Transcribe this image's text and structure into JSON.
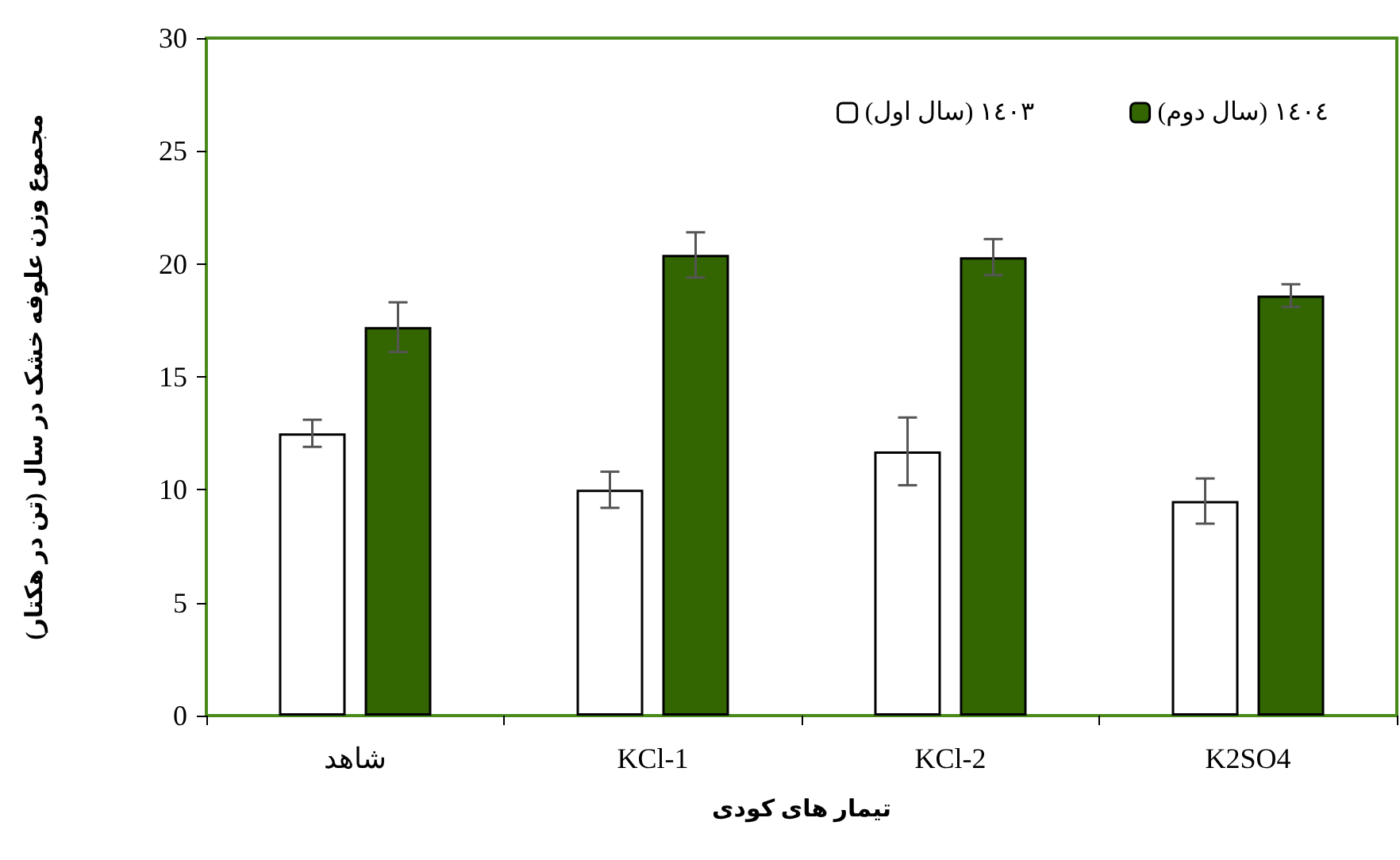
{
  "chart_data": {
    "type": "bar",
    "xlabel": "تیمار های کودی",
    "ylabel": "مجموع وزن علوفه خشک در سال (تن در هکتار)",
    "categories": [
      "شاهد",
      "KCl-1",
      "KCl-2",
      "K2SO4"
    ],
    "series": [
      {
        "name": "١٤٠٣ (سال اول)",
        "color": "#ffffff",
        "values": [
          12.5,
          10.0,
          11.7,
          9.5
        ],
        "errors": [
          0.6,
          0.8,
          1.5,
          1.0
        ]
      },
      {
        "name": "١٤٠٤ (سال دوم)",
        "color": "#336600",
        "values": [
          17.2,
          20.4,
          20.3,
          18.6
        ],
        "errors": [
          1.1,
          1.0,
          0.8,
          0.5
        ]
      }
    ],
    "ylim": [
      0,
      30
    ],
    "yticks": [
      0,
      5,
      10,
      15,
      20,
      25,
      30
    ],
    "grid": false,
    "legend": "top right"
  }
}
